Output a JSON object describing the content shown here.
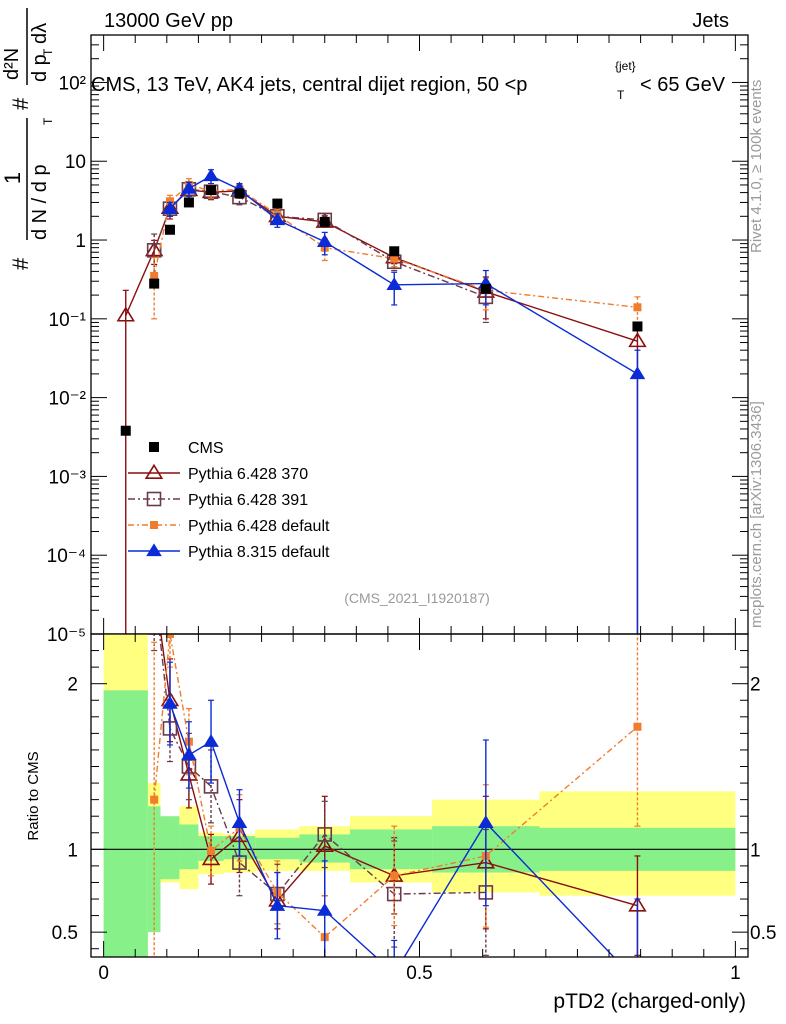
{
  "header": {
    "left": "13000 GeV pp",
    "right": "Jets"
  },
  "side_labels": {
    "rivet": "Rivet 4.1.0, ≥ 100k events",
    "mcplots": "mcplots.cern.ch [arXiv:1306.3436]"
  },
  "chart_data": {
    "type": "scatter",
    "title": "CMS, 13 TeV, AK4 jets, central dijet region, 50 <p_T^{jet}< 65 GeV",
    "title_parts": {
      "main": "CMS, 13 TeV, AK4 jets, central dijet region, 50 <p",
      "sub": "T",
      "sup": "{jet}",
      "tail": "< 65 GeV"
    },
    "ylabel": "1/(dN/dp_T) d²N/(dp_T dλ)",
    "ylabel_parts": {
      "a": "#",
      "b": "1",
      "c": "d N / d p",
      "d": "T",
      "e": "#",
      "f": "d²N",
      "g": "d p",
      "h": "T",
      "i": "dλ"
    },
    "xlabel": "pTD2 (charged-only)",
    "ratio_ylabel": "Ratio to CMS",
    "analysis_tag": "(CMS_2021_I1920187)",
    "xlim": [
      -0.02,
      1.02
    ],
    "ylim": [
      1e-05,
      400
    ],
    "ratio_ylim": [
      0.35,
      2.3
    ],
    "x_ticks": [
      {
        "value": 0,
        "label": "0"
      },
      {
        "value": 0.5,
        "label": "0.5"
      },
      {
        "value": 1,
        "label": "1"
      }
    ],
    "y_ticks": [
      {
        "value": 100,
        "label": "10²"
      },
      {
        "value": 10,
        "label": "10"
      },
      {
        "value": 1,
        "label": "1"
      },
      {
        "value": 0.1,
        "label": "10⁻¹"
      },
      {
        "value": 0.01,
        "label": "10⁻²"
      },
      {
        "value": 0.001,
        "label": "10⁻³"
      },
      {
        "value": 0.0001,
        "label": "10⁻⁴"
      },
      {
        "value": 1e-05,
        "label": "10⁻⁵"
      }
    ],
    "ratio_ticks": [
      {
        "value": 2,
        "label": "2"
      },
      {
        "value": 1,
        "label": "1"
      },
      {
        "value": 0.5,
        "label": "0.5"
      }
    ],
    "bins": [
      0.0,
      0.07,
      0.09,
      0.12,
      0.15,
      0.19,
      0.24,
      0.31,
      0.39,
      0.52,
      0.69,
      1.0
    ],
    "band_inner": [
      [
        0.0,
        1.96
      ],
      [
        0.5,
        1.26
      ],
      [
        0.82,
        1.2
      ],
      [
        0.88,
        1.15
      ],
      [
        0.93,
        1.08
      ],
      [
        0.94,
        1.08
      ],
      [
        0.94,
        1.07
      ],
      [
        0.92,
        1.09
      ],
      [
        0.88,
        1.12
      ],
      [
        0.86,
        1.14
      ],
      [
        0.87,
        1.13
      ]
    ],
    "band_outer": [
      [
        0.0,
        2.3
      ],
      [
        0.55,
        1.4
      ],
      [
        0.8,
        1.12
      ],
      [
        0.76,
        1.26
      ],
      [
        0.85,
        1.1
      ],
      [
        0.86,
        1.09
      ],
      [
        0.87,
        1.12
      ],
      [
        0.87,
        1.14
      ],
      [
        0.8,
        1.2
      ],
      [
        0.74,
        1.3
      ],
      [
        0.72,
        1.35
      ]
    ],
    "data": {
      "name": "CMS",
      "color": "#000000",
      "x": [
        0.035,
        0.08,
        0.105,
        0.135,
        0.17,
        0.215,
        0.275,
        0.35,
        0.46,
        0.605,
        0.845
      ],
      "y": [
        0.0038,
        0.28,
        1.35,
        3.0,
        4.3,
        3.9,
        2.9,
        1.7,
        0.72,
        0.24,
        0.08
      ]
    },
    "series": [
      {
        "name": "Pythia 6.428 370",
        "color": "#8b0d0d",
        "marker": "triangle-open",
        "dash": "",
        "x": [
          0.035,
          0.08,
          0.105,
          0.135,
          0.17,
          0.215,
          0.275,
          0.35,
          0.46,
          0.605,
          0.845
        ],
        "y": [
          0.11,
          0.74,
          2.55,
          4.3,
          4.05,
          4.2,
          2.0,
          1.7,
          0.6,
          0.22,
          0.052
        ],
        "err_lo": [
          0.11,
          0.25,
          0.7,
          1.0,
          0.8,
          0.8,
          0.35,
          0.25,
          0.1,
          0.12,
          0.052
        ],
        "err_hi": [
          0.12,
          0.25,
          0.7,
          1.0,
          0.8,
          0.8,
          0.35,
          0.25,
          0.1,
          0.12,
          0.03
        ],
        "ratio": [
          null,
          2.6,
          1.9,
          1.45,
          0.94,
          1.08,
          0.69,
          1.02,
          0.84,
          0.92,
          0.66
        ],
        "ratio_err": [
          0,
          0.3,
          0.25,
          0.2,
          0.15,
          0.22,
          0.17,
          0.3,
          0.23,
          0.4,
          0.3
        ]
      },
      {
        "name": "Pythia 6.428 391",
        "color": "#6b3a4a",
        "marker": "square-open",
        "dash": "7,3,2,3",
        "x": [
          0.035,
          0.08,
          0.105,
          0.135,
          0.17,
          0.215,
          0.275,
          0.35,
          0.46,
          0.605,
          0.845
        ],
        "y": [
          null,
          0.74,
          2.5,
          4.4,
          4.1,
          3.5,
          2.0,
          1.8,
          0.53,
          0.19,
          null
        ],
        "err_lo": [
          0,
          0.45,
          0.5,
          0.8,
          0.8,
          0.7,
          0.35,
          0.25,
          0.12,
          0.1,
          0
        ],
        "err_hi": [
          0,
          0.45,
          0.5,
          0.8,
          0.8,
          0.7,
          0.35,
          0.25,
          0.12,
          0.1,
          0
        ],
        "ratio": [
          null,
          2.6,
          1.73,
          1.5,
          1.38,
          0.92,
          0.73,
          1.09,
          0.73,
          0.74,
          null
        ],
        "ratio_err": [
          0,
          0.4,
          0.2,
          0.2,
          0.22,
          0.2,
          0.18,
          0.2,
          0.32,
          0.38,
          0
        ]
      },
      {
        "name": "Pythia 6.428 default",
        "color": "#f07c2d",
        "marker": "square-filled",
        "dash": "6,3,2,3",
        "x": [
          0.035,
          0.08,
          0.105,
          0.135,
          0.17,
          0.215,
          0.275,
          0.35,
          0.46,
          0.605,
          0.845
        ],
        "y": [
          null,
          0.35,
          3.1,
          5.0,
          4.2,
          4.4,
          2.1,
          0.8,
          0.58,
          0.23,
          0.14
        ],
        "err_lo": [
          0,
          0.25,
          0.6,
          1.0,
          0.8,
          0.8,
          0.35,
          0.25,
          0.12,
          0.1,
          0.05
        ],
        "err_hi": [
          0,
          0.25,
          0.6,
          1.0,
          0.8,
          0.8,
          0.35,
          0.25,
          0.12,
          0.1,
          0.05
        ],
        "ratio": [
          null,
          1.3,
          2.3,
          1.65,
          0.99,
          1.13,
          0.74,
          0.47,
          0.84,
          0.96,
          1.74
        ],
        "ratio_err": [
          0,
          0.95,
          0.2,
          0.2,
          0.15,
          0.2,
          0.19,
          0.25,
          0.3,
          0.43,
          0.6
        ]
      },
      {
        "name": "Pythia 8.315 default",
        "color": "#0a2bd6",
        "marker": "triangle-filled",
        "dash": "",
        "x": [
          0.035,
          0.08,
          0.105,
          0.135,
          0.17,
          0.215,
          0.275,
          0.35,
          0.46,
          0.605,
          0.845
        ],
        "y": [
          null,
          null,
          2.5,
          4.5,
          6.5,
          4.4,
          1.8,
          0.95,
          0.27,
          0.28,
          0.02
        ],
        "err_lo": [
          0,
          0,
          0.5,
          0.9,
          1.3,
          0.8,
          0.35,
          0.3,
          0.12,
          0.13,
          0.02
        ],
        "err_hi": [
          0,
          0,
          0.5,
          0.9,
          1.3,
          0.8,
          0.35,
          0.3,
          0.12,
          0.13,
          0.02
        ],
        "ratio": [
          null,
          null,
          1.88,
          1.57,
          1.65,
          1.16,
          0.66,
          0.63,
          0.25,
          1.16,
          0.2
        ],
        "ratio_err": [
          0,
          0,
          0.25,
          0.2,
          0.25,
          0.2,
          0.2,
          0.3,
          0.2,
          0.5,
          0.5
        ]
      }
    ]
  }
}
